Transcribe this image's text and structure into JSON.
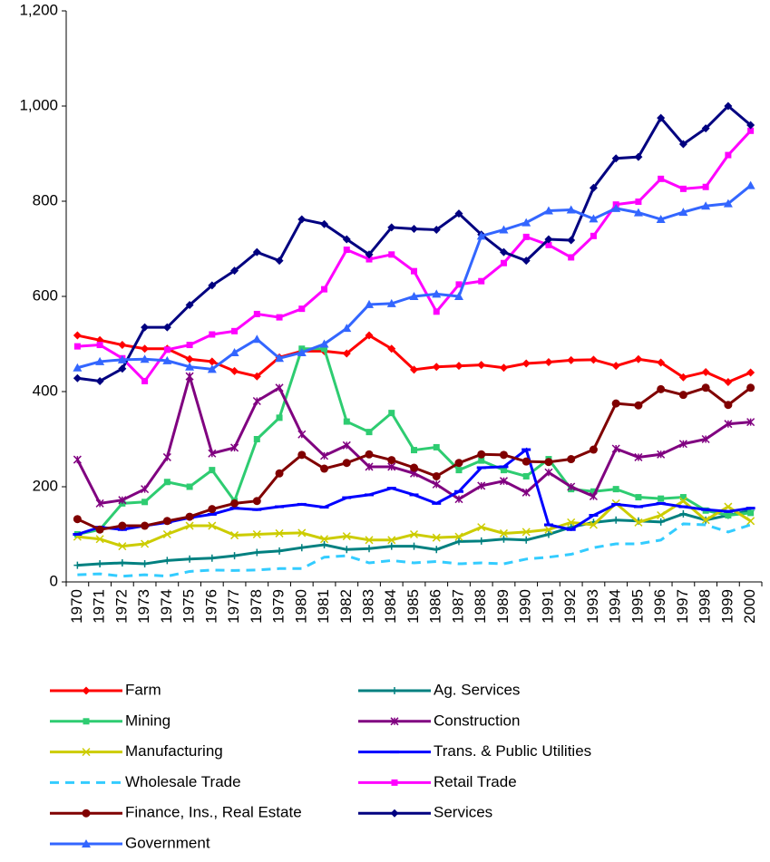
{
  "chart_data": {
    "type": "line",
    "categories": [
      "1970",
      "1971",
      "1972",
      "1973",
      "1974",
      "1975",
      "1976",
      "1977",
      "1978",
      "1979",
      "1980",
      "1981",
      "1982",
      "1983",
      "1984",
      "1985",
      "1986",
      "1987",
      "1988",
      "1989",
      "1990",
      "1991",
      "1992",
      "1993",
      "1994",
      "1995",
      "1996",
      "1997",
      "1998",
      "1999",
      "2000"
    ],
    "ylim": [
      0,
      1200
    ],
    "yticks": [
      0,
      200,
      400,
      600,
      800,
      {
        "value": 1000,
        "label": "1,000"
      },
      {
        "value": 1200,
        "label": "1,200"
      }
    ],
    "grid": false,
    "legend": "bottom",
    "series": [
      {
        "name": "Farm",
        "color": "#ff0000",
        "marker": "diamond",
        "values": [
          518,
          508,
          498,
          490,
          490,
          468,
          463,
          443,
          432,
          472,
          485,
          485,
          480,
          518,
          490,
          446,
          452,
          454,
          456,
          450,
          459,
          462,
          466,
          467,
          454,
          468,
          461,
          430,
          441,
          420,
          440
        ]
      },
      {
        "name": "Ag. Services",
        "color": "#008080",
        "marker": "plus",
        "values": [
          35,
          38,
          40,
          38,
          45,
          48,
          50,
          55,
          62,
          65,
          72,
          78,
          68,
          70,
          75,
          75,
          68,
          85,
          86,
          90,
          88,
          100,
          115,
          125,
          130,
          128,
          126,
          143,
          130,
          140,
          150
        ]
      },
      {
        "name": "Mining",
        "color": "#2ecc71",
        "marker": "square",
        "values": [
          100,
          110,
          165,
          168,
          210,
          200,
          235,
          170,
          300,
          345,
          490,
          490,
          337,
          315,
          355,
          277,
          283,
          235,
          255,
          235,
          222,
          258,
          195,
          190,
          195,
          178,
          175,
          178,
          150,
          140,
          145
        ]
      },
      {
        "name": "Construction",
        "color": "#800080",
        "marker": "star",
        "values": [
          257,
          165,
          172,
          195,
          262,
          432,
          270,
          282,
          380,
          408,
          310,
          265,
          287,
          242,
          242,
          228,
          205,
          174,
          202,
          212,
          188,
          230,
          200,
          180,
          280,
          262,
          268,
          290,
          300,
          332,
          336
        ]
      },
      {
        "name": "Manufacturing",
        "color": "#cccc00",
        "marker": "cross",
        "values": [
          95,
          90,
          75,
          80,
          100,
          118,
          118,
          98,
          100,
          102,
          103,
          90,
          96,
          88,
          88,
          100,
          93,
          95,
          115,
          102,
          105,
          110,
          125,
          120,
          165,
          125,
          140,
          170,
          130,
          158,
          128
        ]
      },
      {
        "name": "Trans. & Public Utilities",
        "color": "#0000ff",
        "marker": "dash",
        "values": [
          100,
          115,
          110,
          118,
          125,
          135,
          142,
          155,
          152,
          158,
          163,
          157,
          177,
          183,
          197,
          183,
          165,
          190,
          240,
          242,
          278,
          120,
          110,
          140,
          163,
          158,
          165,
          158,
          152,
          148,
          155
        ]
      },
      {
        "name": "Wholesale Trade",
        "color": "#33ccff",
        "marker": "none",
        "dashed": true,
        "values": [
          15,
          17,
          12,
          15,
          12,
          22,
          25,
          24,
          25,
          28,
          28,
          52,
          55,
          40,
          45,
          40,
          43,
          38,
          40,
          38,
          48,
          52,
          58,
          72,
          80,
          80,
          88,
          122,
          120,
          105,
          120
        ]
      },
      {
        "name": "Retail Trade",
        "color": "#ff00ff",
        "marker": "square",
        "values": [
          495,
          498,
          470,
          422,
          488,
          498,
          520,
          527,
          563,
          556,
          574,
          615,
          698,
          678,
          688,
          653,
          568,
          625,
          632,
          670,
          725,
          708,
          682,
          727,
          793,
          799,
          847,
          826,
          830,
          897,
          948
        ]
      },
      {
        "name": "Finance, Ins., Real Estate",
        "color": "#800000",
        "marker": "circle",
        "values": [
          132,
          110,
          118,
          118,
          128,
          137,
          153,
          165,
          170,
          228,
          267,
          238,
          250,
          268,
          256,
          240,
          222,
          250,
          268,
          267,
          253,
          252,
          258,
          278,
          375,
          371,
          405,
          393,
          408,
          372,
          408
        ]
      },
      {
        "name": "Services",
        "color": "#000080",
        "marker": "diamond",
        "values": [
          428,
          422,
          448,
          535,
          535,
          582,
          623,
          654,
          693,
          675,
          762,
          752,
          720,
          688,
          745,
          742,
          740,
          774,
          730,
          693,
          675,
          720,
          718,
          828,
          890,
          893,
          975,
          920,
          953,
          1000,
          960
        ]
      },
      {
        "name": "Government",
        "color": "#3366ff",
        "marker": "triangle",
        "values": [
          450,
          463,
          467,
          468,
          465,
          452,
          447,
          482,
          510,
          470,
          482,
          500,
          533,
          583,
          585,
          600,
          605,
          600,
          727,
          740,
          755,
          780,
          782,
          763,
          785,
          776,
          762,
          777,
          790,
          795,
          833
        ]
      }
    ]
  }
}
